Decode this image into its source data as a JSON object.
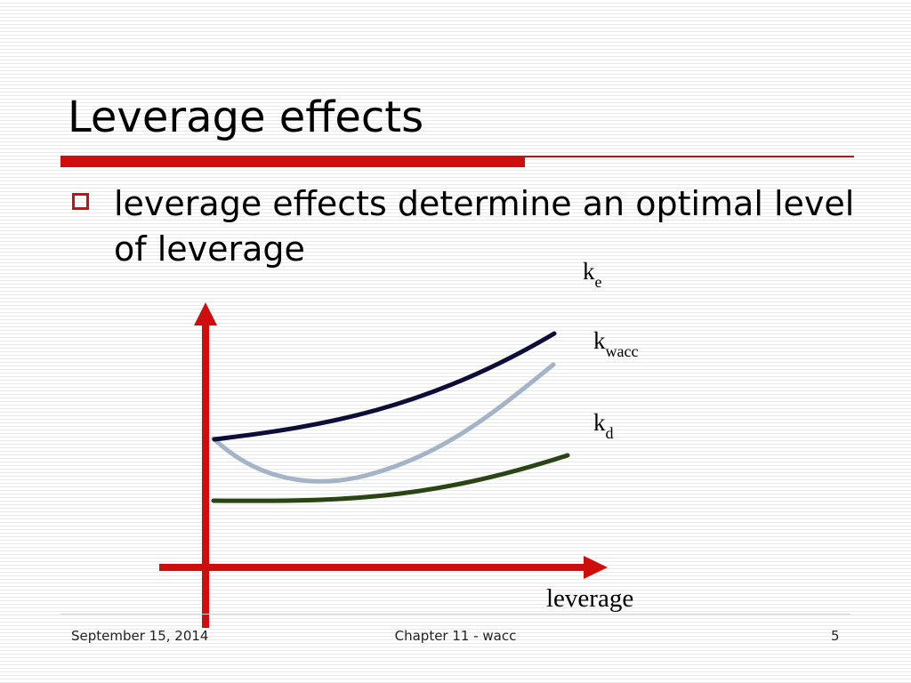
{
  "slide": {
    "title": "Leverage effects",
    "bullet": "leverage effects determine an optimal level of leverage"
  },
  "diagram": {
    "x_axis_label": "leverage",
    "curves": [
      {
        "id": "ke",
        "label_main": "k",
        "label_sub": "e",
        "color": "#0d0d3a"
      },
      {
        "id": "kwacc",
        "label_main": "k",
        "label_sub": "wacc",
        "color": "#a3b3c8"
      },
      {
        "id": "kd",
        "label_main": "k",
        "label_sub": "d",
        "color": "#2a4414"
      }
    ],
    "axis_color": "#d00d0d"
  },
  "footer": {
    "date": "September 15, 2014",
    "chapter": "Chapter 11 - wacc",
    "page": "5"
  }
}
